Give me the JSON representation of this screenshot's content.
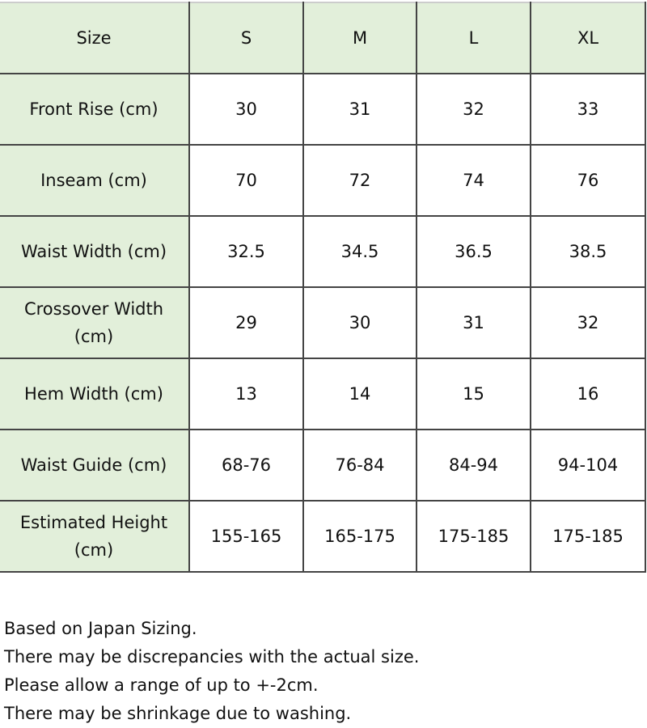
{
  "table": {
    "header": [
      "Size",
      "S",
      "M",
      "L",
      "XL"
    ],
    "rows": [
      {
        "label": "Front Rise (cm)",
        "values": [
          "30",
          "31",
          "32",
          "33"
        ]
      },
      {
        "label": "Inseam (cm)",
        "values": [
          "70",
          "72",
          "74",
          "76"
        ]
      },
      {
        "label": "Waist Width (cm)",
        "values": [
          "32.5",
          "34.5",
          "36.5",
          "38.5"
        ]
      },
      {
        "label": "Crossover Width (cm)",
        "values": [
          "29",
          "30",
          "31",
          "32"
        ]
      },
      {
        "label": "Hem Width (cm)",
        "values": [
          "13",
          "14",
          "15",
          "16"
        ]
      },
      {
        "label": "Waist Guide (cm)",
        "values": [
          "68-76",
          "76-84",
          "84-94",
          "94-104"
        ]
      },
      {
        "label": "Estimated Height (cm)",
        "values": [
          "155-165",
          "165-175",
          "175-185",
          "175-185"
        ]
      }
    ],
    "header_color": "#e2efda"
  },
  "notes": [
    "Based on Japan Sizing.",
    "There may be discrepancies with the actual size.",
    "Please allow a range of up to +-2cm.",
    "There may be shrinkage due to washing."
  ]
}
